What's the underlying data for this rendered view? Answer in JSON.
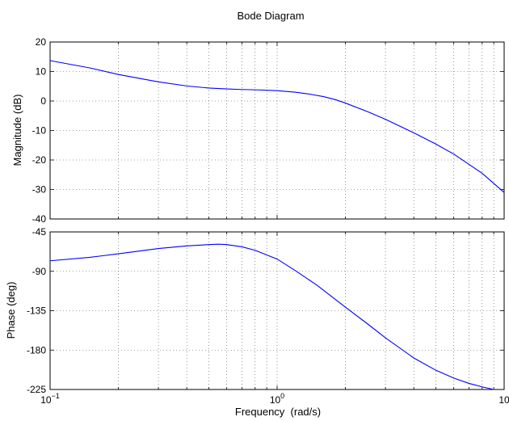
{
  "chart_data": [
    {
      "type": "line",
      "title": "Bode Diagram",
      "ylabel": "Magnitude (dB)",
      "xlabel": "",
      "xscale": "log",
      "xlim": [
        0.1,
        10
      ],
      "ylim": [
        -40,
        20
      ],
      "yticks": [
        -40,
        -30,
        -20,
        -10,
        0,
        10,
        20
      ],
      "grid": true,
      "series": [
        {
          "color": "#0000ff",
          "x": [
            0.1,
            0.15,
            0.2,
            0.3,
            0.4,
            0.5,
            0.6,
            0.7,
            0.8,
            1.0,
            1.2,
            1.4,
            1.6,
            1.8,
            2.0,
            2.5,
            3.0,
            4.0,
            5.0,
            6.0,
            8.0,
            10.0
          ],
          "y": [
            13.7,
            11.2,
            9.0,
            6.5,
            5.1,
            4.4,
            4.1,
            3.9,
            3.8,
            3.5,
            3.0,
            2.3,
            1.5,
            0.5,
            -0.7,
            -3.6,
            -6.2,
            -10.8,
            -14.6,
            -18.0,
            -24.5,
            -31.0
          ]
        }
      ]
    },
    {
      "type": "line",
      "title": "",
      "ylabel": "Phase (deg)",
      "xlabel": "Frequency  (rad/s)",
      "xscale": "log",
      "xlim": [
        0.1,
        10
      ],
      "ylim": [
        -225,
        -45
      ],
      "yticks": [
        -225,
        -180,
        -135,
        -90,
        -45
      ],
      "xticks": [
        {
          "base": "10",
          "exp": "−1"
        },
        {
          "base": "10",
          "exp": "0"
        },
        {
          "base": "10",
          "exp": ""
        }
      ],
      "grid": true,
      "series": [
        {
          "color": "#0000ff",
          "x": [
            0.1,
            0.15,
            0.2,
            0.3,
            0.4,
            0.5,
            0.55,
            0.6,
            0.7,
            0.8,
            1.0,
            1.2,
            1.5,
            2.0,
            2.5,
            3.0,
            4.0,
            5.0,
            6.0,
            7.0,
            8.0,
            9.0
          ],
          "y": [
            -78,
            -74,
            -70,
            -64,
            -61,
            -59.5,
            -59,
            -59.5,
            -62,
            -66,
            -76,
            -89,
            -106,
            -131,
            -150,
            -166,
            -189,
            -203,
            -212,
            -218,
            -222,
            -225
          ]
        }
      ]
    }
  ]
}
